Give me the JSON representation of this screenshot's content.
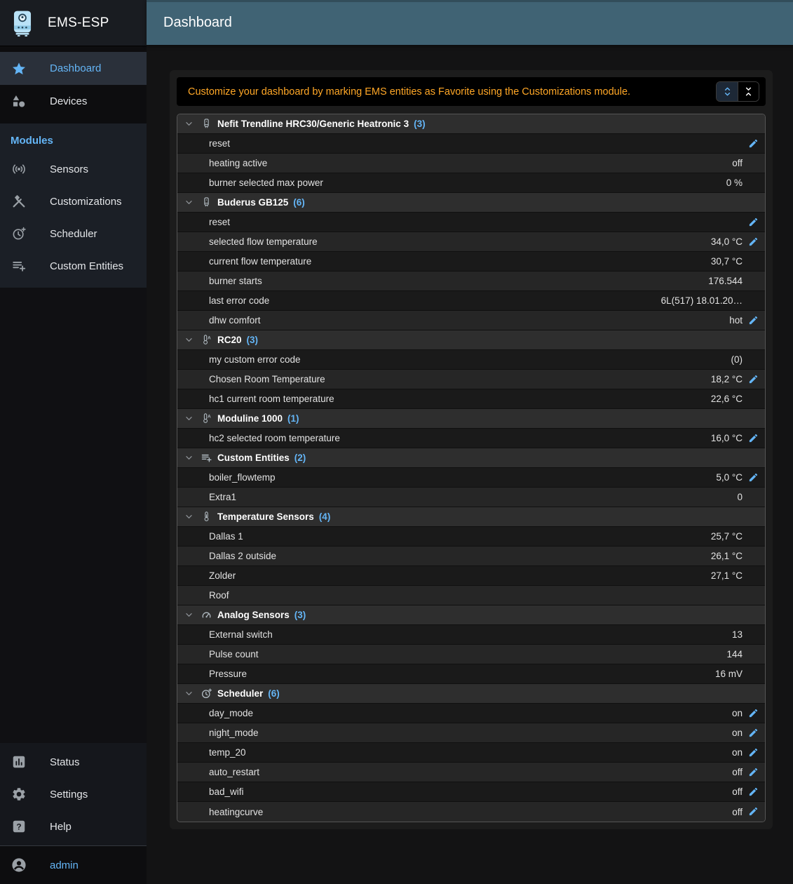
{
  "colors": {
    "accent": "#64b5f6",
    "header_bg": "#406374",
    "banner_bg": "#000000",
    "banner_text": "#ffa726",
    "edit_icon": "#64b5f6"
  },
  "sidebar": {
    "app_title": "EMS-ESP",
    "logo_icon": "boiler-logo-icon",
    "main_nav": [
      {
        "label": "Dashboard",
        "icon": "star-icon",
        "selected": true
      },
      {
        "label": "Devices",
        "icon": "category-icon",
        "selected": false
      }
    ],
    "modules": {
      "heading": "Modules",
      "items": [
        {
          "label": "Sensors",
          "icon": "sensors-icon"
        },
        {
          "label": "Customizations",
          "icon": "tools-icon"
        },
        {
          "label": "Scheduler",
          "icon": "clock-plus-icon"
        },
        {
          "label": "Custom Entities",
          "icon": "playlist-add-icon"
        }
      ]
    },
    "bottom_nav": [
      {
        "label": "Status",
        "icon": "chart-box-icon"
      },
      {
        "label": "Settings",
        "icon": "gear-icon"
      },
      {
        "label": "Help",
        "icon": "help-icon"
      }
    ],
    "user": {
      "label": "admin",
      "icon": "account-circle-icon"
    }
  },
  "header": {
    "title": "Dashboard"
  },
  "banner": {
    "message": "Customize your dashboard by marking EMS entities as Favorite using the Customizations module.",
    "buttons": [
      {
        "name": "expand-all",
        "icon": "unfold-more-icon",
        "active": true
      },
      {
        "name": "collapse-all",
        "icon": "unfold-less-icon",
        "active": false
      }
    ]
  },
  "table": {
    "groups": [
      {
        "name": "Nefit Trendline HRC30/Generic Heatronic 3",
        "count_label": "(3)",
        "icon": "boiler-icon",
        "rows": [
          {
            "name": "reset",
            "value": "",
            "editable": true
          },
          {
            "name": "heating active",
            "value": "off",
            "editable": false
          },
          {
            "name": "burner selected max power",
            "value": "0 %",
            "editable": false
          }
        ]
      },
      {
        "name": "Buderus GB125",
        "count_label": "(6)",
        "icon": "boiler-icon",
        "rows": [
          {
            "name": "reset",
            "value": "",
            "editable": true
          },
          {
            "name": "selected flow temperature",
            "value": "34,0 °C",
            "editable": true
          },
          {
            "name": "current flow temperature",
            "value": "30,7 °C",
            "editable": false
          },
          {
            "name": "burner starts",
            "value": "176.544",
            "editable": false
          },
          {
            "name": "last error code",
            "value": "6L(517) 18.01.20…",
            "editable": false
          },
          {
            "name": "dhw comfort",
            "value": "hot",
            "editable": true
          }
        ]
      },
      {
        "name": "RC20",
        "count_label": "(3)",
        "icon": "thermostat-icon",
        "rows": [
          {
            "name": "my custom error code",
            "value": "(0)",
            "editable": false
          },
          {
            "name": "Chosen Room Temperature",
            "value": "18,2 °C",
            "editable": true
          },
          {
            "name": "hc1 current room temperature",
            "value": "22,6 °C",
            "editable": false
          }
        ]
      },
      {
        "name": "Moduline 1000",
        "count_label": "(1)",
        "icon": "thermostat-icon",
        "rows": [
          {
            "name": "hc2 selected room temperature",
            "value": "16,0 °C",
            "editable": true
          }
        ]
      },
      {
        "name": "Custom Entities",
        "count_label": "(2)",
        "icon": "playlist-add-icon",
        "rows": [
          {
            "name": "boiler_flowtemp",
            "value": "5,0 °C",
            "editable": true
          },
          {
            "name": "Extra1",
            "value": "0",
            "editable": false
          }
        ]
      },
      {
        "name": "Temperature Sensors",
        "count_label": "(4)",
        "icon": "thermometer-icon",
        "rows": [
          {
            "name": "Dallas 1",
            "value": "25,7 °C",
            "editable": false
          },
          {
            "name": "Dallas 2 outside",
            "value": "26,1 °C",
            "editable": false
          },
          {
            "name": "Zolder",
            "value": "27,1 °C",
            "editable": false
          },
          {
            "name": "Roof",
            "value": "",
            "editable": false
          }
        ]
      },
      {
        "name": "Analog Sensors",
        "count_label": "(3)",
        "icon": "gauge-icon",
        "rows": [
          {
            "name": "External switch",
            "value": "13",
            "editable": false
          },
          {
            "name": "Pulse count",
            "value": "144",
            "editable": false
          },
          {
            "name": "Pressure",
            "value": "16 mV",
            "editable": false
          }
        ]
      },
      {
        "name": "Scheduler",
        "count_label": "(6)",
        "icon": "clock-plus-icon",
        "rows": [
          {
            "name": "day_mode",
            "value": "on",
            "editable": true
          },
          {
            "name": "night_mode",
            "value": "on",
            "editable": true
          },
          {
            "name": "temp_20",
            "value": "on",
            "editable": true
          },
          {
            "name": "auto_restart",
            "value": "off",
            "editable": true
          },
          {
            "name": "bad_wifi",
            "value": "off",
            "editable": true
          },
          {
            "name": "heatingcurve",
            "value": "off",
            "editable": true
          }
        ]
      }
    ]
  }
}
